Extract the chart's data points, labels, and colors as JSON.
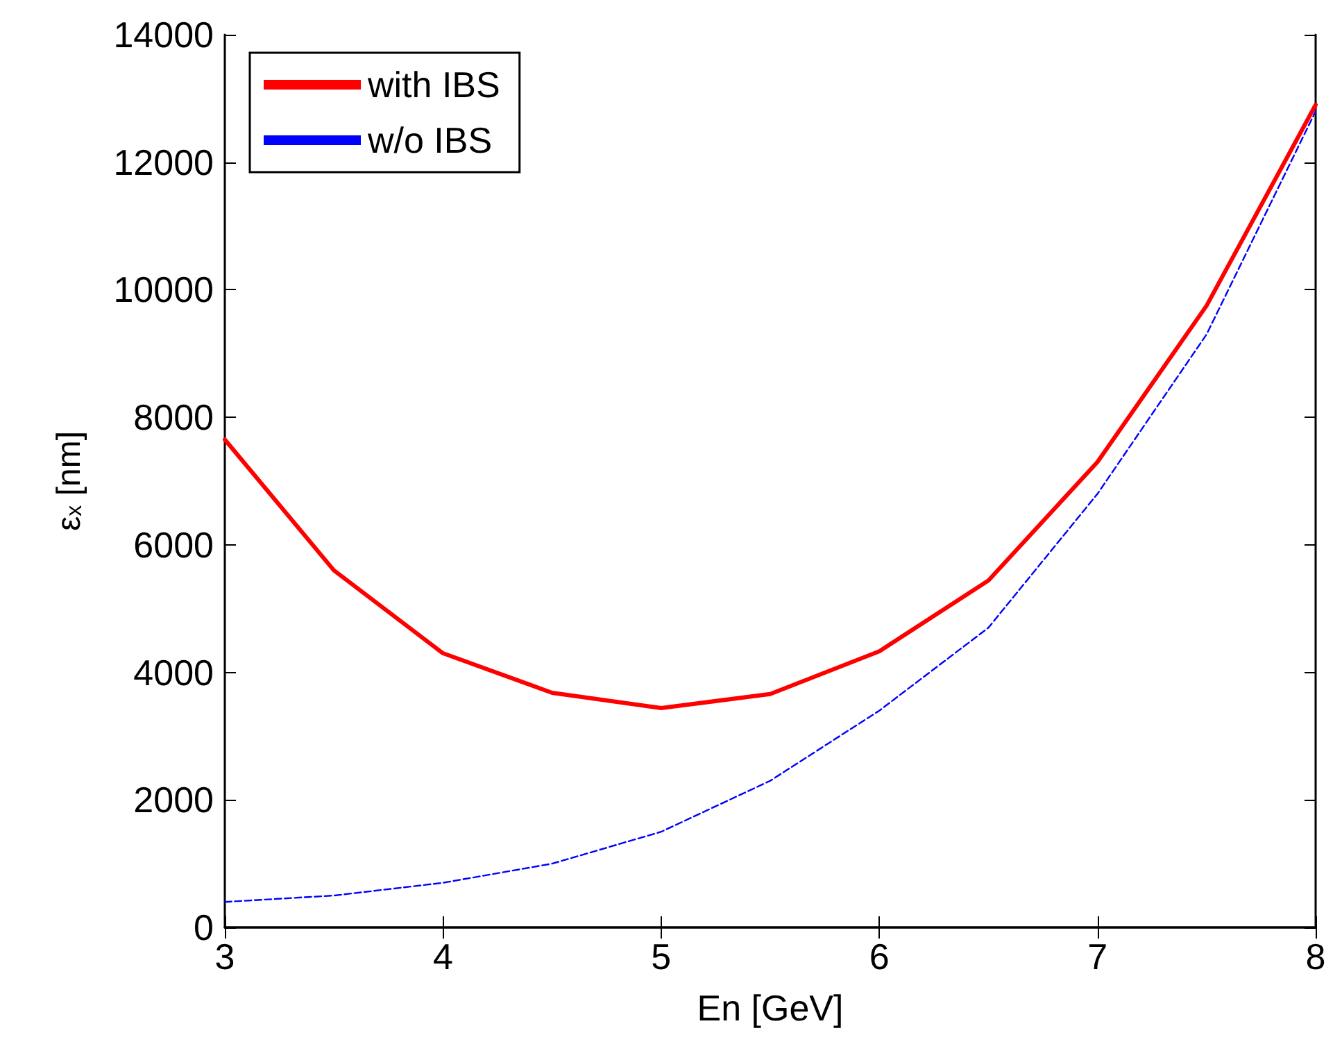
{
  "chart_data": {
    "type": "line",
    "xlabel": "En [GeV]",
    "ylabel": "ε$_{x}$ [nm]",
    "x": [
      3,
      3.5,
      4,
      4.5,
      5,
      5.5,
      6,
      6.5,
      7,
      7.5,
      8
    ],
    "series": [
      {
        "name": "with IBS",
        "color": "#ff0000",
        "line_style": "solid",
        "values": [
          7650,
          5600,
          4300,
          3680,
          3440,
          3660,
          4330,
          5440,
          7300,
          9750,
          12900
        ]
      },
      {
        "name": "w/o IBS",
        "color": "#0000ff",
        "line_style": "dashed",
        "values": [
          400,
          500,
          700,
          1000,
          1500,
          2300,
          3400,
          4700,
          6800,
          9300,
          12800
        ]
      }
    ],
    "xlim": [
      3,
      8
    ],
    "xticks": [
      3,
      4,
      5,
      6,
      7,
      8
    ],
    "ylim": [
      0,
      14000
    ],
    "yticks": [
      0,
      2000,
      4000,
      6000,
      8000,
      10000,
      12000,
      14000
    ],
    "grid": false,
    "legend": "top left",
    "marker": "none"
  }
}
